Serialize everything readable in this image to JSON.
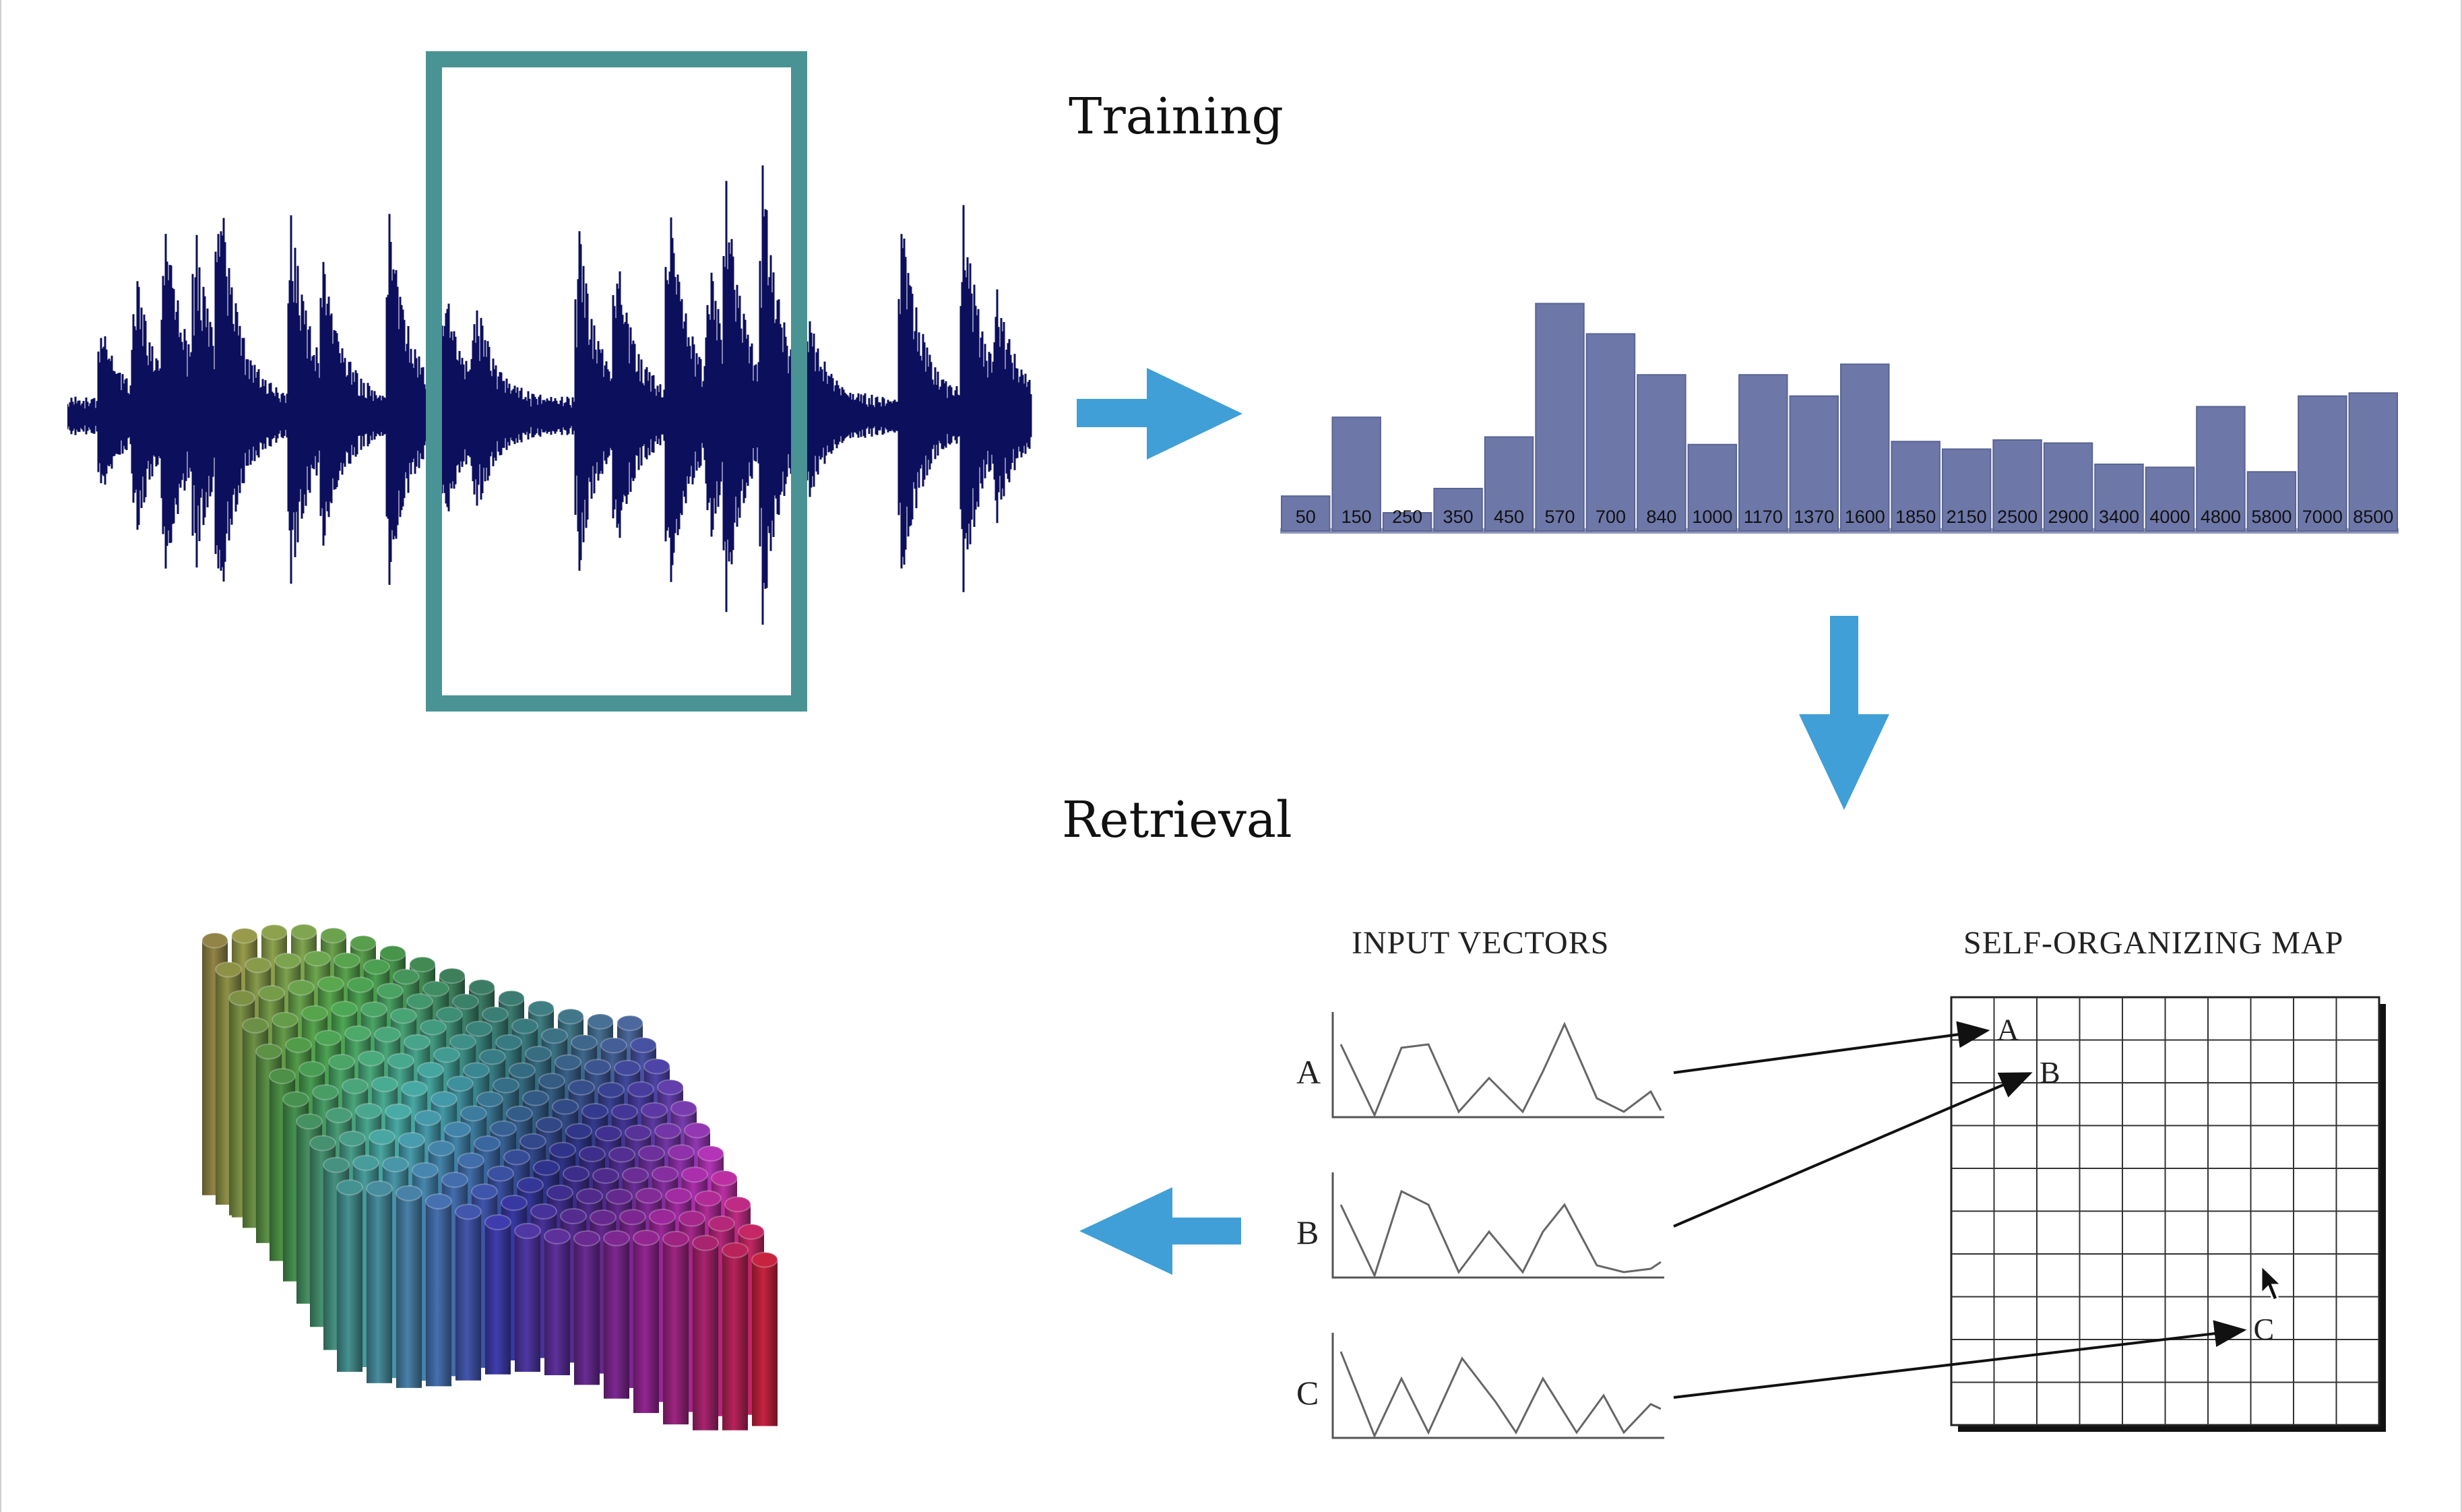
{
  "headings": {
    "training": "Training",
    "retrieval": "Retrieval"
  },
  "som": {
    "input_vectors_label": "INPUT VECTORS",
    "map_label": "SELF-ORGANIZING MAP",
    "vectors": [
      {
        "label": "A",
        "map_cell_label": "A",
        "cell": [
          1,
          1
        ]
      },
      {
        "label": "B",
        "map_cell_label": "B",
        "cell": [
          2,
          2
        ]
      },
      {
        "label": "C",
        "map_cell_label": "C",
        "cell": [
          7,
          8
        ]
      }
    ],
    "grid": {
      "cols": 10,
      "rows": 10
    }
  },
  "colors": {
    "waveform": "#0c0f5c",
    "frame": "#4a9394",
    "arrow": "#3f9fd6",
    "bars": "#6d77a8",
    "bar_edge": "#5a6494",
    "bar_base": "#9197b8"
  },
  "chart_data": {
    "type": "bar",
    "categories": [
      "50",
      "150",
      "250",
      "350",
      "450",
      "570",
      "700",
      "840",
      "1000",
      "1170",
      "1370",
      "1600",
      "1850",
      "2150",
      "2500",
      "2900",
      "3400",
      "4000",
      "4800",
      "5800",
      "7000",
      "8500"
    ],
    "values": [
      23,
      75,
      12,
      28,
      62,
      150,
      130,
      103,
      57,
      103,
      89,
      110,
      59,
      54,
      60,
      58,
      44,
      42,
      82,
      39,
      89,
      91
    ],
    "title": "",
    "xlabel": "",
    "ylabel": "",
    "ylim": [
      0,
      160
    ],
    "grid": false,
    "legend": "none"
  }
}
